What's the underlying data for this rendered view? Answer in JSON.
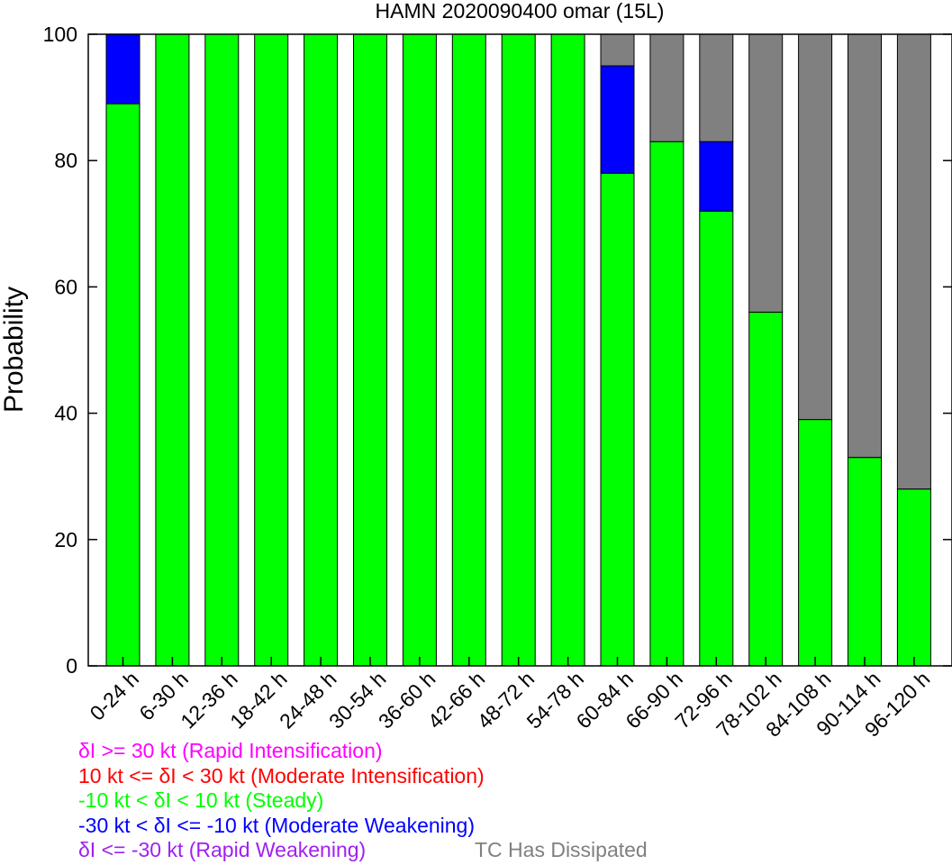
{
  "chart_data": {
    "type": "bar",
    "stacked": true,
    "title": "HAMN 2020090400 omar (15L)",
    "xlabel": "",
    "ylabel": "Probability",
    "ylim": [
      0,
      100
    ],
    "yticks": [
      "0",
      "20",
      "40",
      "60",
      "80",
      "100"
    ],
    "grid": false,
    "categories": [
      "0-24 h",
      "6-30 h",
      "12-36 h",
      "18-42 h",
      "24-48 h",
      "30-54 h",
      "36-60 h",
      "42-66 h",
      "48-72 h",
      "54-78 h",
      "60-84 h",
      "66-90 h",
      "72-96 h",
      "78-102 h",
      "84-108 h",
      "90-114 h",
      "96-120 h"
    ],
    "series": [
      {
        "name": "-10 kt < δI < 10 kt (Steady)",
        "color": "#00ff00",
        "values": [
          89,
          100,
          100,
          100,
          100,
          100,
          100,
          100,
          100,
          100,
          78,
          83,
          72,
          56,
          39,
          33,
          28
        ]
      },
      {
        "name": "-30 kt < δI <= -10 kt (Moderate Weakening)",
        "color": "#0000ff",
        "values": [
          11,
          0,
          0,
          0,
          0,
          0,
          0,
          0,
          0,
          0,
          17,
          0,
          11,
          0,
          0,
          0,
          0
        ]
      },
      {
        "name": "TC Has Dissipated",
        "color": "#808080",
        "values": [
          0,
          0,
          0,
          0,
          0,
          0,
          0,
          0,
          0,
          0,
          5,
          17,
          17,
          44,
          61,
          67,
          72
        ]
      }
    ],
    "legend": [
      {
        "text": "δI >= 30 kt (Rapid Intensification)",
        "color": "#ff00ff"
      },
      {
        "text": "10 kt <= δI < 30 kt (Moderate Intensification)",
        "color": "#ff0000"
      },
      {
        "text": "-10 kt < δI < 10 kt (Steady)",
        "color": "#00ff00"
      },
      {
        "text": "-30 kt < δI <= -10 kt (Moderate Weakening)",
        "color": "#0000ff"
      },
      {
        "text": "δI <= -30 kt (Rapid Weakening)",
        "color": "#a020f0"
      }
    ],
    "legend_extra": {
      "text": "TC Has Dissipated",
      "color": "#808080"
    },
    "legend_placement": "bottom-left"
  }
}
